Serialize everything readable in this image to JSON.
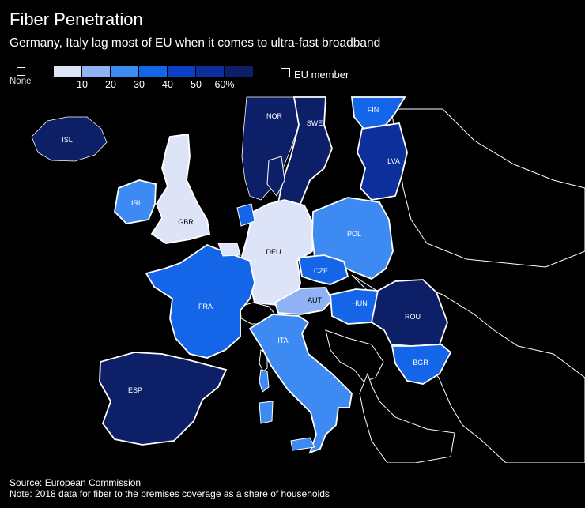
{
  "header": {
    "title": "Fiber Penetration",
    "subtitle": "Germany, Italy lag most of EU when it comes to ultra-fast broadband"
  },
  "legend": {
    "none_label": "None",
    "scale_colors": [
      "#dde4f7",
      "#8fb2f5",
      "#3d8bf2",
      "#1565e8",
      "#0a3fc6",
      "#0c2f9c",
      "#0d1f66"
    ],
    "scale_ticks": [
      "10",
      "20",
      "30",
      "40",
      "50",
      "60%"
    ],
    "eu_member_label": "EU member"
  },
  "countries": [
    {
      "code": "ISL",
      "bin": 6,
      "eu": false
    },
    {
      "code": "NOR",
      "bin": 6,
      "eu": false
    },
    {
      "code": "SWE",
      "bin": 6,
      "eu": true
    },
    {
      "code": "FIN",
      "bin": 3,
      "eu": true
    },
    {
      "code": "LVA",
      "bin": 5,
      "eu": true
    },
    {
      "code": "IRL",
      "bin": 2,
      "eu": true
    },
    {
      "code": "GBR",
      "bin": 0,
      "eu": true
    },
    {
      "code": "DEU",
      "bin": 0,
      "eu": true
    },
    {
      "code": "POL",
      "bin": 2,
      "eu": true
    },
    {
      "code": "CZE",
      "bin": 3,
      "eu": true
    },
    {
      "code": "FRA",
      "bin": 3,
      "eu": true
    },
    {
      "code": "AUT",
      "bin": 1,
      "eu": true
    },
    {
      "code": "HUN",
      "bin": 3,
      "eu": true
    },
    {
      "code": "ROU",
      "bin": 6,
      "eu": true
    },
    {
      "code": "ITA",
      "bin": 2,
      "eu": true
    },
    {
      "code": "BGR",
      "bin": 3,
      "eu": true
    },
    {
      "code": "ESP",
      "bin": 6,
      "eu": true
    }
  ],
  "footer": {
    "source": "Source: European Commission",
    "note": "Note: 2018 data for fiber to the premises coverage as a share of households"
  }
}
